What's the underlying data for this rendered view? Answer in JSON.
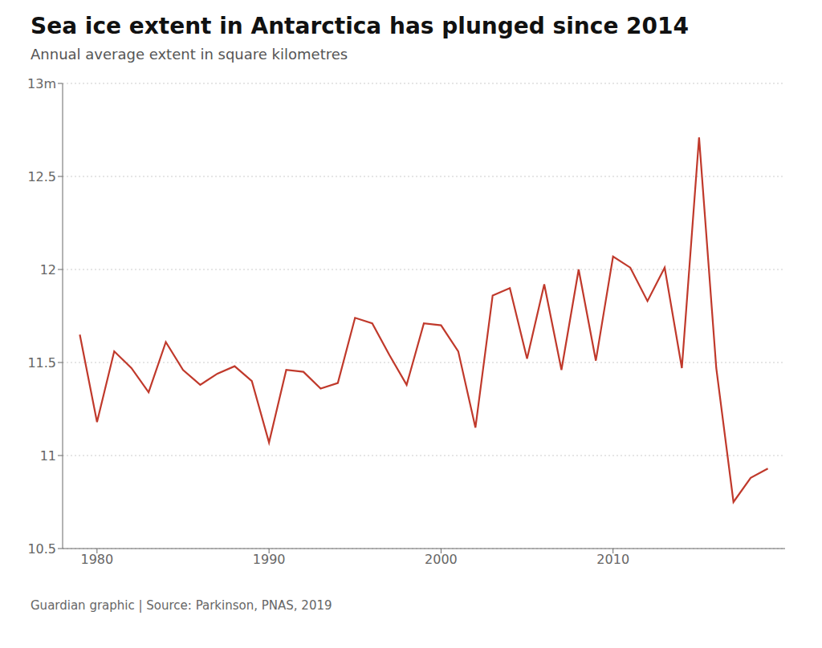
{
  "chart_data": {
    "type": "line",
    "title": "Sea ice extent in Antarctica has plunged since 2014",
    "subtitle": "Annual average extent in square kilometres",
    "source": "Guardian graphic | Source: Parkinson, PNAS, 2019",
    "x": [
      1979,
      1980,
      1981,
      1982,
      1983,
      1984,
      1985,
      1986,
      1987,
      1988,
      1989,
      1990,
      1991,
      1992,
      1993,
      1994,
      1995,
      1996,
      1997,
      1998,
      1999,
      2000,
      2001,
      2002,
      2003,
      2004,
      2005,
      2006,
      2007,
      2008,
      2009,
      2010,
      2011,
      2012,
      2013,
      2014,
      2015,
      2016,
      2017,
      2018,
      2019
    ],
    "values": [
      11.65,
      11.18,
      11.56,
      11.47,
      11.34,
      11.61,
      11.46,
      11.38,
      11.44,
      11.48,
      11.4,
      11.07,
      11.46,
      11.45,
      11.36,
      11.39,
      11.74,
      11.71,
      11.54,
      11.38,
      11.71,
      11.7,
      11.56,
      11.15,
      11.86,
      11.9,
      11.52,
      11.92,
      11.46,
      12.0,
      11.51,
      12.07,
      12.01,
      11.83,
      12.01,
      11.47,
      12.71,
      11.47,
      10.75,
      10.88,
      10.93
    ],
    "color": "#c0392b",
    "xlim": [
      1978.0,
      2020.0
    ],
    "xticks": [
      1980,
      1990,
      2000,
      2010
    ],
    "ylim": [
      10.5,
      13.0
    ],
    "yticks": [
      10.5,
      11,
      11.5,
      12,
      12.5,
      {
        "value": 13,
        "label": "13m"
      }
    ],
    "grid": true
  }
}
